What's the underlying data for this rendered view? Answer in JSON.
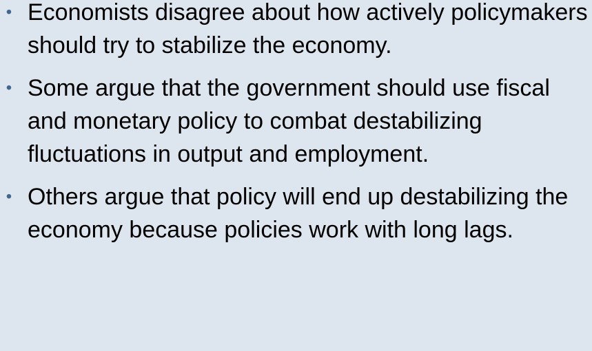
{
  "slide": {
    "bullet_color": "#3f6790",
    "background_color": "#dde5ef",
    "bullets": [
      {
        "text": "Economists disagree about how actively policymakers should try to stabilize the economy."
      },
      {
        "text": "Some argue that the government should use fiscal and monetary policy to combat destabilizing fluctuations in output and employment."
      },
      {
        "text": "Others argue that policy will end up destabilizing the economy because policies work with long lags."
      }
    ]
  }
}
